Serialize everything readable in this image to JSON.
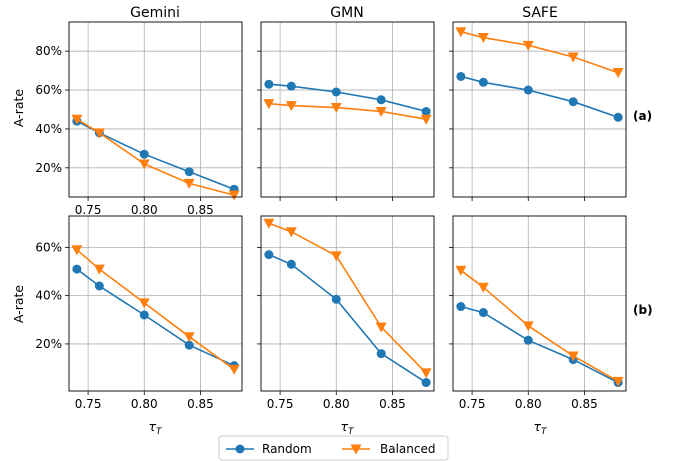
{
  "columns": [
    "Gemini",
    "GMN",
    "SAFE"
  ],
  "row_labels": [
    "(a)",
    "(b)"
  ],
  "ylabel": "A-rate",
  "xlabel_base": "τ",
  "xlabel_sub": "T",
  "legend": [
    "Random",
    "Balanced"
  ],
  "colors": {
    "Random": "#1f77b4",
    "Balanced": "#ff7f0e"
  },
  "chart_data": [
    {
      "type": "line",
      "row": "(a)",
      "title": "Gemini",
      "x": [
        0.74,
        0.76,
        0.8,
        0.84,
        0.88
      ],
      "ylim": [
        0.05,
        0.95
      ],
      "yticks": [
        0.2,
        0.4,
        0.6,
        0.8
      ],
      "ytick_labels": [
        "20%",
        "40%",
        "60%",
        "80%"
      ],
      "xticks": [
        0.75,
        0.8,
        0.85
      ],
      "xtick_labels": [
        "0.75",
        "0.80",
        "0.85"
      ],
      "grid": true,
      "series": [
        {
          "name": "Random",
          "marker": "circle",
          "values": [
            0.44,
            0.38,
            0.27,
            0.18,
            0.09
          ]
        },
        {
          "name": "Balanced",
          "marker": "triangle-down",
          "values": [
            0.45,
            0.38,
            0.22,
            0.12,
            0.06
          ]
        }
      ]
    },
    {
      "type": "line",
      "row": "(a)",
      "title": "GMN",
      "x": [
        0.74,
        0.76,
        0.8,
        0.84,
        0.88
      ],
      "ylim": [
        0.05,
        0.95
      ],
      "yticks": [
        0.2,
        0.4,
        0.6,
        0.8
      ],
      "ytick_labels": [],
      "xticks": [
        0.75,
        0.8,
        0.85
      ],
      "xtick_labels": [],
      "grid": true,
      "series": [
        {
          "name": "Random",
          "marker": "circle",
          "values": [
            0.63,
            0.62,
            0.59,
            0.55,
            0.49
          ]
        },
        {
          "name": "Balanced",
          "marker": "triangle-down",
          "values": [
            0.53,
            0.52,
            0.51,
            0.49,
            0.45
          ]
        }
      ]
    },
    {
      "type": "line",
      "row": "(a)",
      "title": "SAFE",
      "x": [
        0.74,
        0.76,
        0.8,
        0.84,
        0.88
      ],
      "ylim": [
        0.05,
        0.95
      ],
      "yticks": [
        0.2,
        0.4,
        0.6,
        0.8
      ],
      "ytick_labels": [],
      "xticks": [
        0.75,
        0.8,
        0.85
      ],
      "xtick_labels": [],
      "grid": true,
      "series": [
        {
          "name": "Random",
          "marker": "circle",
          "values": [
            0.67,
            0.64,
            0.6,
            0.54,
            0.46
          ]
        },
        {
          "name": "Balanced",
          "marker": "triangle-down",
          "values": [
            0.9,
            0.87,
            0.83,
            0.77,
            0.69
          ]
        }
      ]
    },
    {
      "type": "line",
      "row": "(b)",
      "title": "",
      "x": [
        0.74,
        0.76,
        0.8,
        0.84,
        0.88
      ],
      "ylim": [
        0.005,
        0.73
      ],
      "yticks": [
        0.2,
        0.4,
        0.6
      ],
      "ytick_labels": [
        "20%",
        "40%",
        "60%"
      ],
      "xticks": [
        0.75,
        0.8,
        0.85
      ],
      "xtick_labels": [
        "0.75",
        "0.80",
        "0.85"
      ],
      "grid": true,
      "series": [
        {
          "name": "Random",
          "marker": "circle",
          "values": [
            0.51,
            0.44,
            0.32,
            0.195,
            0.11
          ]
        },
        {
          "name": "Balanced",
          "marker": "triangle-down",
          "values": [
            0.59,
            0.51,
            0.37,
            0.23,
            0.095
          ]
        }
      ]
    },
    {
      "type": "line",
      "row": "(b)",
      "title": "",
      "x": [
        0.74,
        0.76,
        0.8,
        0.84,
        0.88
      ],
      "ylim": [
        0.005,
        0.73
      ],
      "yticks": [
        0.2,
        0.4,
        0.6
      ],
      "ytick_labels": [],
      "xticks": [
        0.75,
        0.8,
        0.85
      ],
      "xtick_labels": [
        "0.75",
        "0.80",
        "0.85"
      ],
      "grid": true,
      "series": [
        {
          "name": "Random",
          "marker": "circle",
          "values": [
            0.57,
            0.53,
            0.385,
            0.16,
            0.04
          ]
        },
        {
          "name": "Balanced",
          "marker": "triangle-down",
          "values": [
            0.7,
            0.665,
            0.565,
            0.27,
            0.08
          ]
        }
      ]
    },
    {
      "type": "line",
      "row": "(b)",
      "title": "",
      "x": [
        0.74,
        0.76,
        0.8,
        0.84,
        0.88
      ],
      "ylim": [
        0.005,
        0.73
      ],
      "yticks": [
        0.2,
        0.4,
        0.6
      ],
      "ytick_labels": [],
      "xticks": [
        0.75,
        0.8,
        0.85
      ],
      "xtick_labels": [
        "0.75",
        "0.80",
        "0.85"
      ],
      "grid": true,
      "series": [
        {
          "name": "Random",
          "marker": "circle",
          "values": [
            0.355,
            0.33,
            0.215,
            0.135,
            0.04
          ]
        },
        {
          "name": "Balanced",
          "marker": "triangle-down",
          "values": [
            0.505,
            0.435,
            0.275,
            0.15,
            0.045
          ]
        }
      ]
    }
  ]
}
